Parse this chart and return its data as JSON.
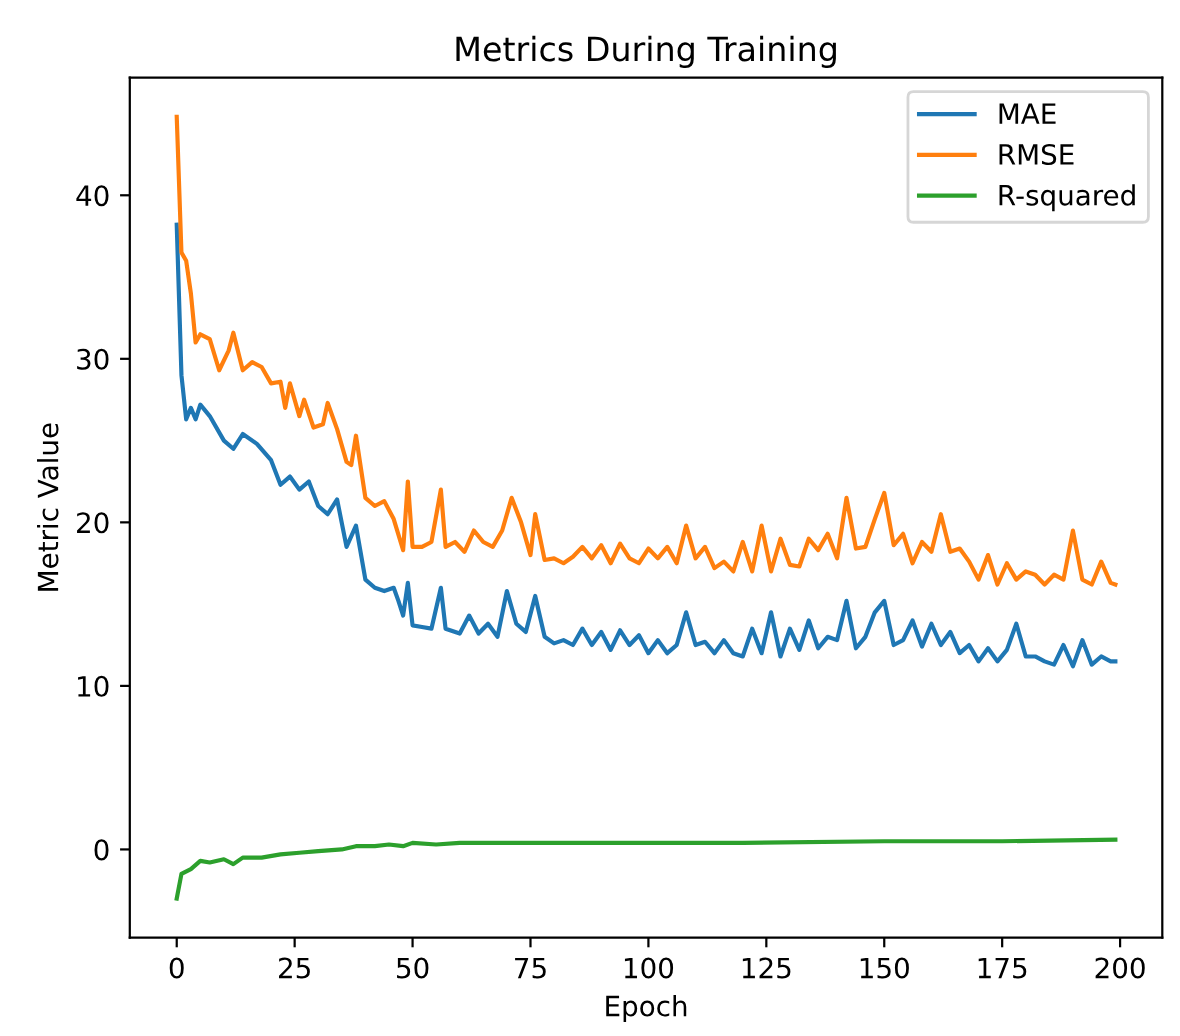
{
  "chart_data": {
    "type": "line",
    "title": "Metrics During Training",
    "xlabel": "Epoch",
    "ylabel": "Metric Value",
    "xlim": [
      -9.95,
      208.95
    ],
    "ylim": [
      -5.39,
      47.19
    ],
    "xticks": [
      0,
      25,
      50,
      75,
      100,
      125,
      150,
      175,
      200
    ],
    "yticks": [
      0,
      10,
      20,
      30,
      40
    ],
    "legend": "top right",
    "grid": false,
    "marker": "none",
    "line_style": "solid",
    "series": [
      {
        "name": "MAE",
        "color": "#1f77b4",
        "x": [
          0,
          1,
          2,
          3,
          4,
          5,
          7,
          10,
          12,
          14,
          17,
          20,
          22,
          24,
          26,
          28,
          30,
          32,
          34,
          36,
          38,
          40,
          42,
          44,
          46,
          47,
          48,
          49,
          50,
          52,
          54,
          56,
          57,
          60,
          62,
          64,
          66,
          68,
          70,
          72,
          74,
          76,
          78,
          80,
          82,
          84,
          86,
          88,
          90,
          92,
          94,
          96,
          98,
          100,
          102,
          104,
          106,
          108,
          110,
          112,
          114,
          116,
          118,
          120,
          122,
          124,
          126,
          128,
          130,
          132,
          134,
          136,
          138,
          140,
          142,
          144,
          146,
          148,
          150,
          152,
          154,
          156,
          158,
          160,
          162,
          164,
          166,
          168,
          170,
          172,
          174,
          176,
          178,
          180,
          182,
          184,
          186,
          188,
          190,
          192,
          194,
          196,
          198,
          199
        ],
        "values": [
          38.2,
          29,
          26.3,
          27,
          26.3,
          27.2,
          26.5,
          25,
          24.5,
          25.4,
          24.8,
          23.8,
          22.3,
          22.8,
          22,
          22.5,
          21,
          20.5,
          21.4,
          18.5,
          19.8,
          16.5,
          16,
          15.8,
          16,
          15.2,
          14.3,
          16.3,
          13.7,
          13.6,
          13.5,
          16,
          13.5,
          13.2,
          14.3,
          13.2,
          13.8,
          13,
          15.8,
          13.8,
          13.3,
          15.5,
          13,
          12.6,
          12.8,
          12.5,
          13.5,
          12.5,
          13.3,
          12.2,
          13.4,
          12.5,
          13.1,
          12,
          12.8,
          12,
          12.5,
          14.5,
          12.5,
          12.7,
          12,
          12.8,
          12,
          11.8,
          13.5,
          12,
          14.5,
          11.8,
          13.5,
          12.2,
          14,
          12.3,
          13,
          12.8,
          15.2,
          12.3,
          13,
          14.5,
          15.2,
          12.5,
          12.8,
          14,
          12.4,
          13.8,
          12.5,
          13.3,
          12,
          12.5,
          11.5,
          12.3,
          11.5,
          12.2,
          13.8,
          11.8,
          11.8,
          11.5,
          11.3,
          12.5,
          11.2,
          12.8,
          11.3,
          11.8,
          11.5,
          11.5
        ]
      },
      {
        "name": "RMSE",
        "color": "#ff7f0e",
        "x": [
          0,
          1,
          2,
          3,
          4,
          5,
          7,
          9,
          11,
          12,
          14,
          16,
          18,
          20,
          22,
          23,
          24,
          26,
          27,
          29,
          31,
          32,
          34,
          36,
          37,
          38,
          40,
          42,
          44,
          46,
          48,
          49,
          50,
          52,
          54,
          56,
          57,
          59,
          61,
          63,
          65,
          67,
          69,
          71,
          73,
          75,
          76,
          78,
          80,
          82,
          84,
          86,
          88,
          90,
          92,
          94,
          96,
          98,
          100,
          102,
          104,
          106,
          108,
          110,
          112,
          114,
          116,
          118,
          120,
          122,
          124,
          126,
          128,
          130,
          132,
          134,
          136,
          138,
          140,
          142,
          144,
          146,
          148,
          150,
          152,
          154,
          156,
          158,
          160,
          162,
          164,
          166,
          168,
          170,
          172,
          174,
          176,
          178,
          180,
          182,
          184,
          186,
          188,
          190,
          192,
          194,
          196,
          198,
          199
        ],
        "values": [
          44.8,
          36.5,
          36,
          34,
          31,
          31.5,
          31.2,
          29.3,
          30.5,
          31.6,
          29.3,
          29.8,
          29.5,
          28.5,
          28.6,
          27,
          28.5,
          26.5,
          27.5,
          25.8,
          26,
          27.3,
          25.7,
          23.7,
          23.5,
          25.3,
          21.5,
          21,
          21.3,
          20.2,
          18.3,
          22.5,
          18.5,
          18.5,
          18.8,
          22,
          18.5,
          18.8,
          18.2,
          19.5,
          18.8,
          18.5,
          19.5,
          21.5,
          20,
          18,
          20.5,
          17.7,
          17.8,
          17.5,
          17.9,
          18.5,
          17.8,
          18.6,
          17.5,
          18.7,
          17.8,
          17.5,
          18.4,
          17.8,
          18.5,
          17.5,
          19.8,
          17.8,
          18.5,
          17.2,
          17.6,
          17,
          18.8,
          17,
          19.8,
          17,
          19,
          17.4,
          17.3,
          19,
          18.3,
          19.3,
          17.8,
          21.5,
          18.4,
          18.5,
          20.2,
          21.8,
          18.6,
          19.3,
          17.5,
          18.8,
          18.2,
          20.5,
          18.2,
          18.4,
          17.6,
          16.5,
          18,
          16.2,
          17.5,
          16.5,
          17,
          16.8,
          16.2,
          16.8,
          16.5,
          19.5,
          16.5,
          16.2,
          17.6,
          16.3,
          16.2
        ]
      },
      {
        "name": "R-squared",
        "color": "#2ca02c",
        "x": [
          0,
          1,
          3,
          5,
          7,
          10,
          12,
          14,
          18,
          22,
          26,
          30,
          35,
          38,
          42,
          45,
          48,
          50,
          55,
          60,
          70,
          80,
          100,
          120,
          150,
          175,
          199
        ],
        "values": [
          -3,
          -1.5,
          -1.2,
          -0.7,
          -0.8,
          -0.6,
          -0.9,
          -0.5,
          -0.5,
          -0.3,
          -0.2,
          -0.1,
          0,
          0.2,
          0.2,
          0.3,
          0.2,
          0.4,
          0.3,
          0.4,
          0.4,
          0.4,
          0.4,
          0.4,
          0.5,
          0.5,
          0.6
        ]
      }
    ]
  }
}
